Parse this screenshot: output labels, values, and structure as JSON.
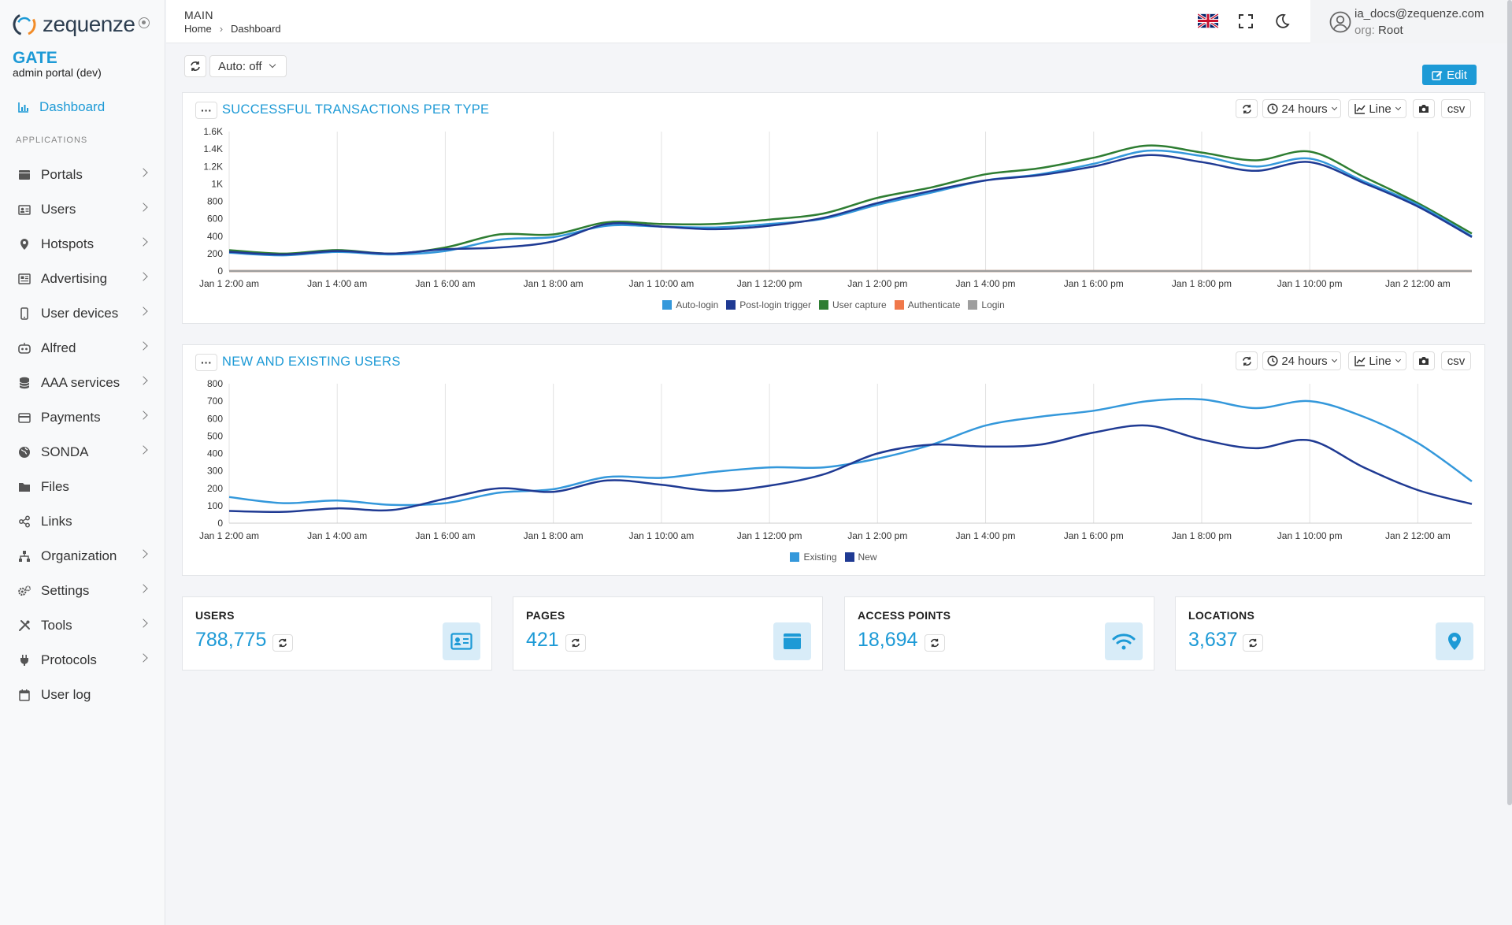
{
  "brand": {
    "logo_text": "zequenze",
    "product": "GATE",
    "portal": "admin portal (dev)"
  },
  "sidebar": {
    "active": "Dashboard",
    "section_header": "APPLICATIONS",
    "items": [
      {
        "label": "Portals",
        "icon": "portal-icon",
        "expandable": true
      },
      {
        "label": "Users",
        "icon": "id-card-icon",
        "expandable": true
      },
      {
        "label": "Hotspots",
        "icon": "map-pin-icon",
        "expandable": true
      },
      {
        "label": "Advertising",
        "icon": "newspaper-icon",
        "expandable": true
      },
      {
        "label": "User devices",
        "icon": "mobile-icon",
        "expandable": true
      },
      {
        "label": "Alfred",
        "icon": "robot-icon",
        "expandable": true
      },
      {
        "label": "AAA services",
        "icon": "database-icon",
        "expandable": true
      },
      {
        "label": "Payments",
        "icon": "credit-card-icon",
        "expandable": true
      },
      {
        "label": "SONDA",
        "icon": "globe-icon",
        "expandable": true
      },
      {
        "label": "Files",
        "icon": "folder-icon",
        "expandable": false
      },
      {
        "label": "Links",
        "icon": "share-icon",
        "expandable": false
      },
      {
        "label": "Organization",
        "icon": "sitemap-icon",
        "expandable": true
      },
      {
        "label": "Settings",
        "icon": "gears-icon",
        "expandable": true
      },
      {
        "label": "Tools",
        "icon": "tools-icon",
        "expandable": true
      },
      {
        "label": "Protocols",
        "icon": "plug-icon",
        "expandable": true
      },
      {
        "label": "User log",
        "icon": "calendar-icon",
        "expandable": false
      }
    ]
  },
  "topbar": {
    "section": "MAIN",
    "breadcrumb": [
      "Home",
      "Dashboard"
    ],
    "user_email": "ia_docs@zequenze.com",
    "org_key": "org:",
    "org_value": "Root"
  },
  "toolbar": {
    "auto_label": "Auto: off",
    "edit_label": "Edit"
  },
  "chart_controls": {
    "range": "24 hours",
    "type": "Line",
    "csv": "csv"
  },
  "colors": {
    "accent": "#1d9ad6",
    "auto_login": "#3498db",
    "post_login": "#1f3a93",
    "user_capture": "#2e7d32",
    "authenticate": "#f0784a",
    "login": "#9e9e9e",
    "existing": "#3498db",
    "new": "#1f3a93"
  },
  "chart_data": [
    {
      "type": "line",
      "title": "SUCCESSFUL TRANSACTIONS PER TYPE",
      "x": [
        "Jan 1 2:00 am",
        "Jan 1 3:00 am",
        "Jan 1 4:00 am",
        "Jan 1 5:00 am",
        "Jan 1 6:00 am",
        "Jan 1 7:00 am",
        "Jan 1 8:00 am",
        "Jan 1 9:00 am",
        "Jan 1 10:00 am",
        "Jan 1 11:00 am",
        "Jan 1 12:00 pm",
        "Jan 1 1:00 pm",
        "Jan 1 2:00 pm",
        "Jan 1 3:00 pm",
        "Jan 1 4:00 pm",
        "Jan 1 5:00 pm",
        "Jan 1 6:00 pm",
        "Jan 1 7:00 pm",
        "Jan 1 8:00 pm",
        "Jan 1 9:00 pm",
        "Jan 1 10:00 pm",
        "Jan 1 11:00 pm",
        "Jan 2 12:00 am",
        "Jan 2 1:00 am"
      ],
      "tick_labels": [
        "Jan 1 2:00 am",
        "Jan 1 4:00 am",
        "Jan 1 6:00 am",
        "Jan 1 8:00 am",
        "Jan 1 10:00 am",
        "Jan 1 12:00 pm",
        "Jan 1 2:00 pm",
        "Jan 1 4:00 pm",
        "Jan 1 6:00 pm",
        "Jan 1 8:00 pm",
        "Jan 1 10:00 pm",
        "Jan 2 12:00 am"
      ],
      "y_ticks": [
        "0",
        "200",
        "400",
        "600",
        "800",
        "1K",
        "1.2K",
        "1.4K",
        "1.6K"
      ],
      "ylim": [
        0,
        1600
      ],
      "series": [
        {
          "name": "Auto-login",
          "values": [
            210,
            180,
            220,
            190,
            230,
            360,
            390,
            520,
            510,
            500,
            540,
            600,
            760,
            900,
            1040,
            1110,
            1230,
            1380,
            1320,
            1200,
            1290,
            1030,
            760,
            400
          ]
        },
        {
          "name": "Post-login trigger",
          "values": [
            220,
            190,
            230,
            200,
            250,
            270,
            340,
            540,
            510,
            480,
            520,
            610,
            780,
            920,
            1040,
            1100,
            1200,
            1330,
            1250,
            1150,
            1250,
            1010,
            740,
            390
          ]
        },
        {
          "name": "User capture",
          "values": [
            240,
            200,
            240,
            200,
            270,
            420,
            420,
            560,
            540,
            540,
            590,
            660,
            840,
            960,
            1110,
            1180,
            1300,
            1440,
            1360,
            1270,
            1370,
            1080,
            780,
            430
          ]
        },
        {
          "name": "Authenticate",
          "values": [
            0,
            0,
            0,
            0,
            0,
            0,
            0,
            0,
            0,
            0,
            0,
            0,
            0,
            0,
            0,
            0,
            0,
            0,
            0,
            0,
            0,
            0,
            0,
            0
          ]
        },
        {
          "name": "Login",
          "values": [
            0,
            0,
            0,
            0,
            0,
            0,
            0,
            0,
            0,
            0,
            0,
            0,
            0,
            0,
            0,
            0,
            0,
            0,
            0,
            0,
            0,
            0,
            0,
            0
          ]
        }
      ],
      "legend": "bottom",
      "grid": "vertical"
    },
    {
      "type": "line",
      "title": "NEW AND EXISTING USERS",
      "x": [
        "Jan 1 2:00 am",
        "Jan 1 3:00 am",
        "Jan 1 4:00 am",
        "Jan 1 5:00 am",
        "Jan 1 6:00 am",
        "Jan 1 7:00 am",
        "Jan 1 8:00 am",
        "Jan 1 9:00 am",
        "Jan 1 10:00 am",
        "Jan 1 11:00 am",
        "Jan 1 12:00 pm",
        "Jan 1 1:00 pm",
        "Jan 1 2:00 pm",
        "Jan 1 3:00 pm",
        "Jan 1 4:00 pm",
        "Jan 1 5:00 pm",
        "Jan 1 6:00 pm",
        "Jan 1 7:00 pm",
        "Jan 1 8:00 pm",
        "Jan 1 9:00 pm",
        "Jan 1 10:00 pm",
        "Jan 1 11:00 pm",
        "Jan 2 12:00 am",
        "Jan 2 1:00 am"
      ],
      "tick_labels": [
        "Jan 1 2:00 am",
        "Jan 1 4:00 am",
        "Jan 1 6:00 am",
        "Jan 1 8:00 am",
        "Jan 1 10:00 am",
        "Jan 1 12:00 pm",
        "Jan 1 2:00 pm",
        "Jan 1 4:00 pm",
        "Jan 1 6:00 pm",
        "Jan 1 8:00 pm",
        "Jan 1 10:00 pm",
        "Jan 2 12:00 am"
      ],
      "y_ticks": [
        "0",
        "100",
        "200",
        "300",
        "400",
        "500",
        "600",
        "700",
        "800"
      ],
      "ylim": [
        0,
        800
      ],
      "series": [
        {
          "name": "Existing",
          "values": [
            150,
            115,
            130,
            105,
            115,
            175,
            195,
            265,
            260,
            295,
            320,
            320,
            370,
            450,
            560,
            610,
            645,
            700,
            710,
            660,
            700,
            610,
            460,
            240
          ]
        },
        {
          "name": "New",
          "values": [
            70,
            65,
            85,
            75,
            140,
            200,
            180,
            245,
            220,
            185,
            215,
            280,
            400,
            450,
            440,
            450,
            520,
            560,
            480,
            430,
            475,
            320,
            190,
            110
          ]
        }
      ],
      "legend": "bottom",
      "grid": "vertical"
    }
  ],
  "stats": [
    {
      "label": "USERS",
      "value": "788,775",
      "icon": "id-card-icon"
    },
    {
      "label": "PAGES",
      "value": "421",
      "icon": "page-icon"
    },
    {
      "label": "ACCESS POINTS",
      "value": "18,694",
      "icon": "wifi-icon"
    },
    {
      "label": "LOCATIONS",
      "value": "3,637",
      "icon": "map-pin-icon"
    }
  ]
}
